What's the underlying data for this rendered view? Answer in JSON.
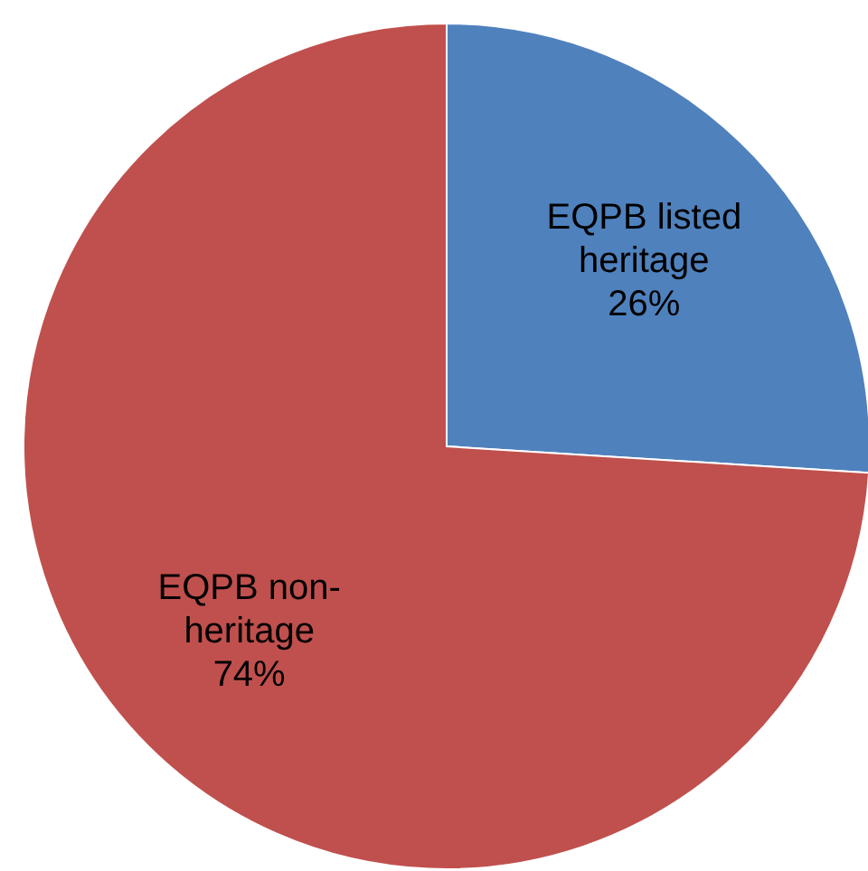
{
  "chart_data": {
    "type": "pie",
    "categories": [
      "EQPB listed heritage",
      "EQPB non-heritage"
    ],
    "values": [
      26,
      74
    ],
    "colors": [
      "#4f81bd",
      "#c0504d"
    ],
    "value_labels": [
      "26%",
      "74%"
    ]
  }
}
